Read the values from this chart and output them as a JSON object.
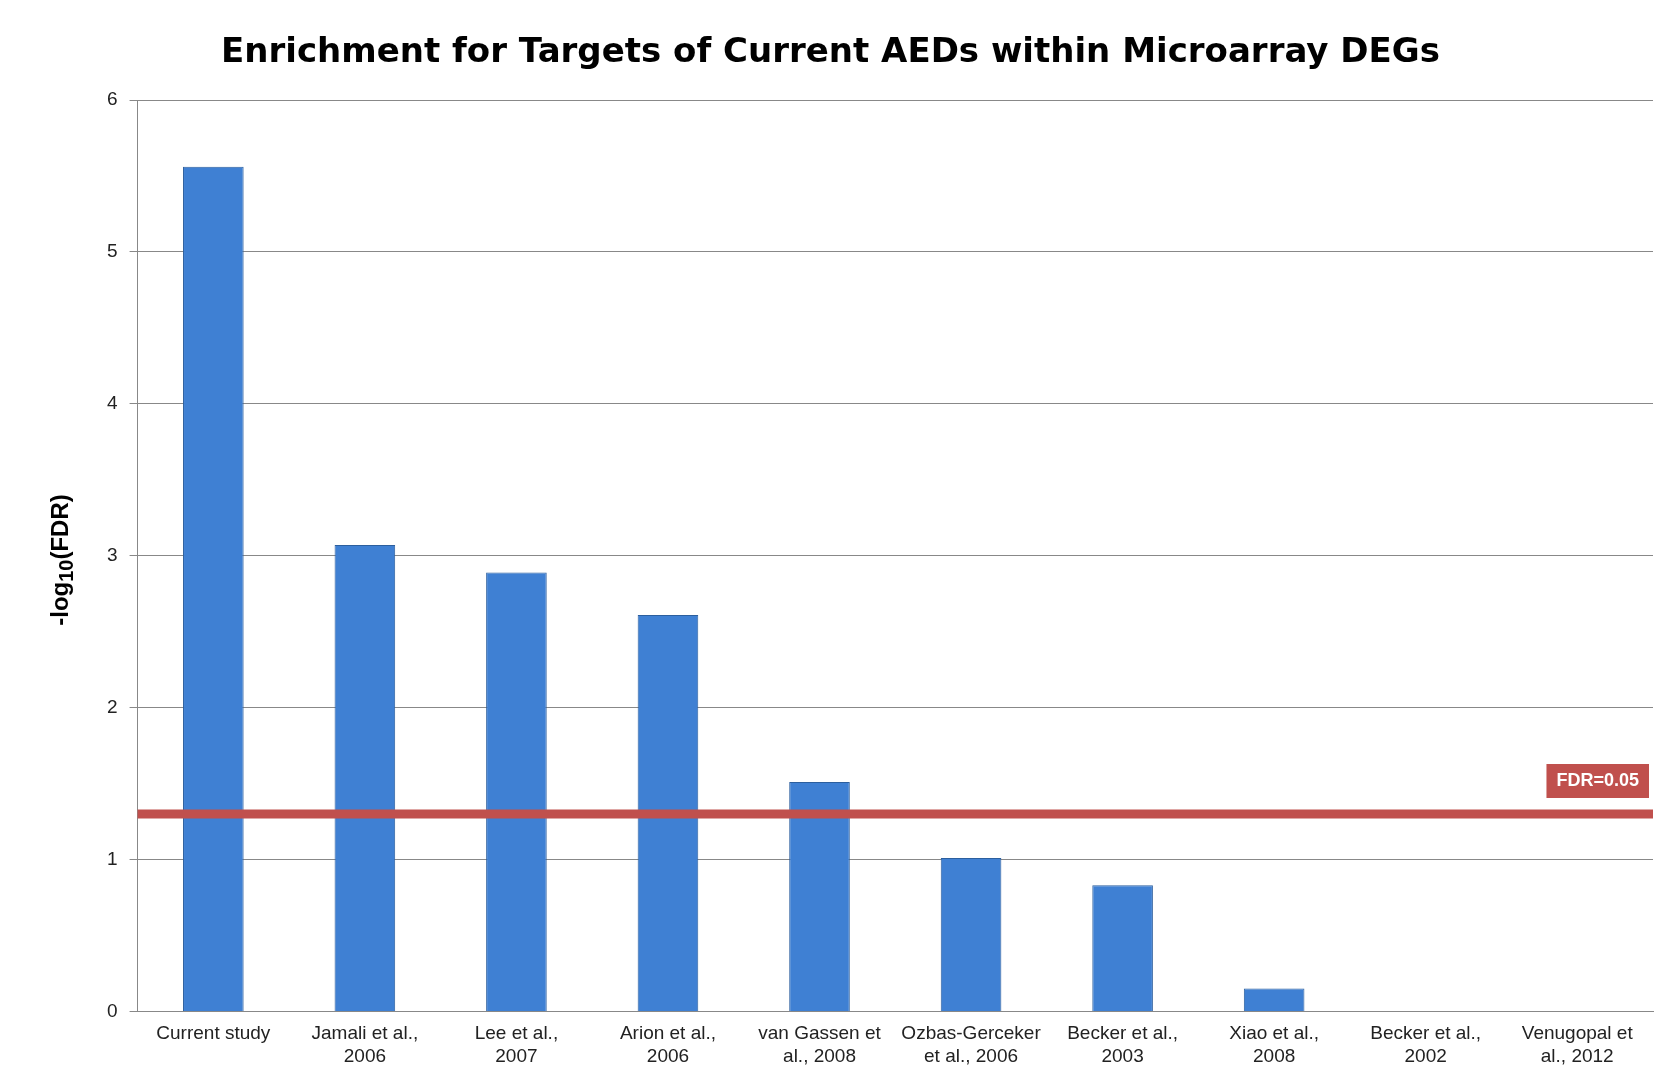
{
  "chart_data": {
    "type": "bar",
    "title": "Enrichment for Targets of Current AEDs within Microarray DEGs",
    "ylabel": "-log$_{10}$(FDR)",
    "categories": [
      "Current study",
      "Jamali et al., 2006",
      "Lee et al., 2007",
      "Arion et al., 2006",
      "van Gassen et al., 2008",
      "Ozbas-Gerceker et al., 2006",
      "Becker et al., 2003",
      "Xiao et al., 2008",
      "Becker et al., 2002",
      "Venugopal et al., 2012"
    ],
    "values": [
      5.56,
      3.07,
      2.89,
      2.61,
      1.51,
      1.01,
      0.83,
      0.15,
      0,
      0
    ],
    "color": "#3f80d3",
    "ylim": [
      0,
      6
    ],
    "yticks": [
      0,
      1,
      2,
      3,
      4,
      5,
      6
    ],
    "grid": "y",
    "legend": false,
    "ref_lines": [
      {
        "axis": "y",
        "value": 1.3,
        "color": "#c0504d"
      }
    ],
    "annotations": [
      {
        "text": "FDR=0.05",
        "y": 1.3
      }
    ]
  }
}
